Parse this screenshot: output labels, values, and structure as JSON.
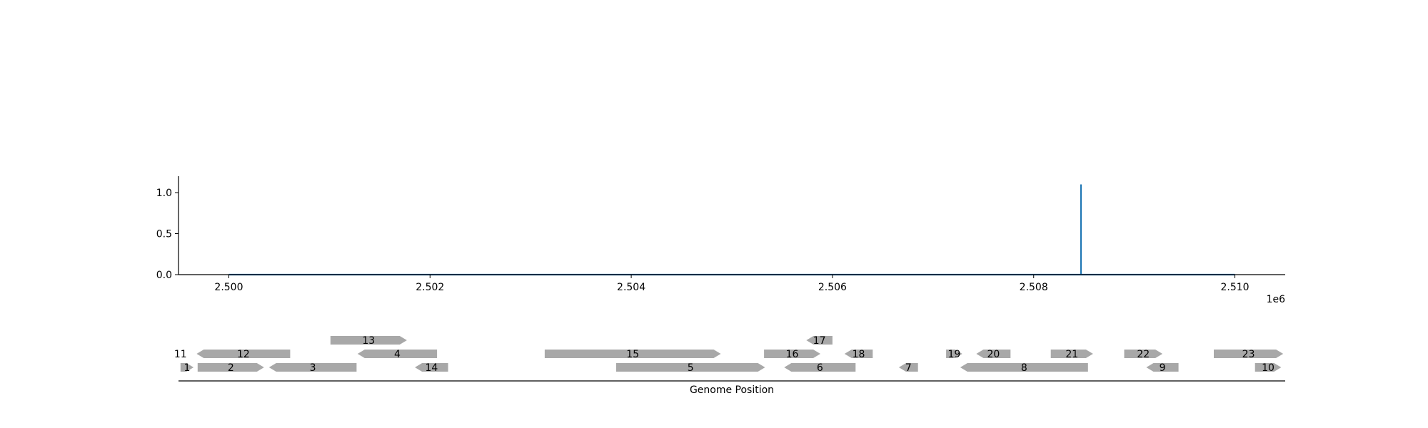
{
  "chart_data": [
    {
      "type": "line",
      "title": "",
      "xlabel": "",
      "ylabel": "",
      "x_offset_label": "1e6",
      "xlim": [
        2499500,
        2510500
      ],
      "ylim": [
        0,
        1.2
      ],
      "x_ticks": [
        2500000,
        2502000,
        2504000,
        2506000,
        2508000,
        2510000
      ],
      "x_tick_labels": [
        "2.500",
        "2.502",
        "2.504",
        "2.506",
        "2.508",
        "2.510"
      ],
      "y_ticks": [
        0.0,
        0.5,
        1.0
      ],
      "y_tick_labels": [
        "0.0",
        "0.5",
        "1.0"
      ],
      "grid": false,
      "series": [
        {
          "color": "#1f77b4",
          "x": [
            2500000,
            2508470,
            2508470,
            2508470,
            2510000
          ],
          "y": [
            0.0,
            0.0,
            1.1,
            0.0,
            0.0
          ]
        }
      ]
    },
    {
      "type": "gene-track",
      "xlabel": "Genome Position",
      "xlim": [
        2499500,
        2510500
      ],
      "color": "#a8a8a8",
      "genes": [
        {
          "label": "1",
          "start": 2499520,
          "end": 2499650,
          "strand": 1,
          "row": 0
        },
        {
          "label": "2",
          "start": 2499690,
          "end": 2500350,
          "strand": 1,
          "row": 0
        },
        {
          "label": "3",
          "start": 2500400,
          "end": 2501270,
          "strand": -1,
          "row": 0
        },
        {
          "label": "14",
          "start": 2501850,
          "end": 2502180,
          "strand": -1,
          "row": 0
        },
        {
          "label": "5",
          "start": 2503850,
          "end": 2505330,
          "strand": 1,
          "row": 0
        },
        {
          "label": "6",
          "start": 2505520,
          "end": 2506230,
          "strand": -1,
          "row": 0
        },
        {
          "label": "7",
          "start": 2506660,
          "end": 2506850,
          "strand": -1,
          "row": 0
        },
        {
          "label": "8",
          "start": 2507270,
          "end": 2508540,
          "strand": -1,
          "row": 0
        },
        {
          "label": "9",
          "start": 2509120,
          "end": 2509440,
          "strand": -1,
          "row": 0
        },
        {
          "label": "10",
          "start": 2510200,
          "end": 2510460,
          "strand": 1,
          "row": 0
        },
        {
          "label": "11",
          "start": 2499480,
          "end": 2499560,
          "strand": 0,
          "row": 1,
          "textOnly": true
        },
        {
          "label": "12",
          "start": 2499680,
          "end": 2500610,
          "strand": -1,
          "row": 1
        },
        {
          "label": "4",
          "start": 2501280,
          "end": 2502070,
          "strand": -1,
          "row": 1
        },
        {
          "label": "15",
          "start": 2503140,
          "end": 2504890,
          "strand": 1,
          "row": 1
        },
        {
          "label": "16",
          "start": 2505320,
          "end": 2505880,
          "strand": 1,
          "row": 1
        },
        {
          "label": "18",
          "start": 2506120,
          "end": 2506400,
          "strand": -1,
          "row": 1
        },
        {
          "label": "19",
          "start": 2507130,
          "end": 2507290,
          "strand": 1,
          "row": 1
        },
        {
          "label": "20",
          "start": 2507430,
          "end": 2507770,
          "strand": -1,
          "row": 1
        },
        {
          "label": "21",
          "start": 2508170,
          "end": 2508590,
          "strand": 1,
          "row": 1
        },
        {
          "label": "22",
          "start": 2508900,
          "end": 2509280,
          "strand": 1,
          "row": 1
        },
        {
          "label": "23",
          "start": 2509790,
          "end": 2510480,
          "strand": 1,
          "row": 1
        },
        {
          "label": "13",
          "start": 2501010,
          "end": 2501770,
          "strand": 1,
          "row": 2
        },
        {
          "label": "17",
          "start": 2505740,
          "end": 2506000,
          "strand": -1,
          "row": 2
        }
      ]
    }
  ]
}
